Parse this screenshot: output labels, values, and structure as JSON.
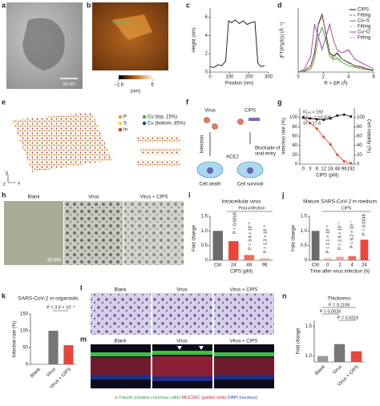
{
  "chart_data": [
    {
      "panel": "c",
      "type": "line",
      "x": [
        0,
        20,
        40,
        60,
        80,
        95,
        110,
        130,
        150,
        170,
        190,
        210,
        230,
        245,
        260,
        280
      ],
      "series": [
        {
          "color": "#111111",
          "values": [
            0.6,
            0.5,
            0.8,
            0.7,
            1.2,
            5.6,
            5.4,
            5.7,
            5.3,
            5.6,
            5.2,
            5.4,
            5.5,
            1.0,
            0.6,
            0.7
          ]
        }
      ],
      "xlim": [
        0,
        300
      ],
      "ylim": [
        0,
        7
      ],
      "xticks": [
        0,
        100,
        200,
        300
      ],
      "yticks": [
        0,
        2,
        4,
        6
      ],
      "xlabel": "Position (nm)",
      "ylabel": "Height (nm)"
    },
    {
      "panel": "d",
      "type": "line",
      "x": [
        0,
        0.5,
        1,
        1.3,
        1.6,
        1.9,
        2.2,
        2.5,
        2.8,
        3.1,
        3.5,
        4,
        4.5,
        5,
        5.5,
        6
      ],
      "series": [
        {
          "name": "CIPS",
          "color": "#111111",
          "style": "solid",
          "values": [
            0,
            0.02,
            0.1,
            0.3,
            0.75,
            0.9,
            0.6,
            0.3,
            0.25,
            0.3,
            0.2,
            0.15,
            0.1,
            0.08,
            0.05,
            0.03
          ]
        },
        {
          "name": "Fitting",
          "color": "#e8463a",
          "style": "dashed",
          "values": [
            0,
            0.02,
            0.1,
            0.32,
            0.73,
            0.88,
            0.62,
            0.3,
            0.22,
            0.28,
            0.2,
            0.14,
            0.1,
            0.07,
            0.05,
            0.03
          ]
        },
        {
          "name": "Cu–S",
          "color": "#2e9e44",
          "style": "solid",
          "values": [
            0,
            0.01,
            0.05,
            0.2,
            0.55,
            0.7,
            0.5,
            0.25,
            0.2,
            0.22,
            0.15,
            0.1,
            0.08,
            0.05,
            0.04,
            0.02
          ]
        },
        {
          "name": "Fitting",
          "color": "#7bc96f",
          "style": "dotted",
          "values": [
            0,
            0.01,
            0.06,
            0.22,
            0.53,
            0.68,
            0.52,
            0.26,
            0.18,
            0.2,
            0.15,
            0.1,
            0.07,
            0.05,
            0.03,
            0.02
          ]
        },
        {
          "name": "Cu–O",
          "color": "#b03aa8",
          "style": "solid",
          "values": [
            0,
            0.05,
            0.25,
            0.75,
            0.55,
            0.35,
            0.55,
            0.75,
            0.5,
            0.35,
            0.3,
            0.35,
            0.2,
            0.15,
            0.1,
            0.05
          ]
        },
        {
          "name": "Fitting",
          "color": "#8a7fd0",
          "style": "dotted",
          "values": [
            0,
            0.04,
            0.24,
            0.72,
            0.57,
            0.37,
            0.53,
            0.72,
            0.52,
            0.33,
            0.3,
            0.33,
            0.21,
            0.14,
            0.1,
            0.05
          ]
        }
      ],
      "xlim": [
        0,
        6
      ],
      "ylim": [
        0,
        1
      ],
      "xticks": [
        0,
        2,
        4,
        6
      ],
      "legend": "top-right",
      "xlabel": "R + ΔR (Å)",
      "ylabel": "|FT(k³χ(k))| (Å⁻⁴)"
    },
    {
      "panel": "g",
      "type": "line",
      "categories": [
        "0",
        "3",
        "6",
        "12",
        "24",
        "48",
        "96",
        "192"
      ],
      "series": [
        {
          "color": "#e8463a",
          "axis": "y",
          "values": [
            100,
            88,
            76,
            58,
            42,
            20,
            6,
            2
          ]
        },
        {
          "color": "#222222",
          "axis": "y2",
          "values": [
            100,
            98,
            96,
            95,
            98,
            104,
            106,
            102
          ]
        }
      ],
      "markers": true,
      "ylim": [
        0,
        120
      ],
      "yticks": [
        0,
        20,
        40,
        60,
        80,
        100
      ],
      "y2lim": [
        0,
        120
      ],
      "y2ticks": [
        0,
        20,
        40,
        60,
        80,
        100
      ],
      "xlabel": "CIPS (pM)",
      "ylabel": "Infection rate (%)",
      "y2label": "Cell viability (%)",
      "annotations": [
        "IC₅₀ > 192",
        "EC₅₀ = 10.938",
        "SI > 17.6"
      ]
    },
    {
      "panel": "i",
      "type": "bar",
      "title": "Intracellular virus",
      "categories": [
        "Ctrl",
        "24",
        "48",
        "96"
      ],
      "values": [
        1.0,
        0.65,
        0.18,
        0.06
      ],
      "colors": [
        "#6b6b6b",
        "#e8463a",
        "#ef6a5c",
        "#f4a29a"
      ],
      "ylim": [
        0,
        1.5
      ],
      "yticks": [
        0,
        0.5,
        {
          "value": 1,
          "label": "1.0"
        },
        1.5
      ],
      "xlabel": "CIPS (pM)",
      "ylabel": "Fold change",
      "annotations": [
        "Post-infection",
        "P = 0.0019",
        "P = 3.4 × 10⁻⁶",
        "P = 1.3 × 10⁻⁶"
      ]
    },
    {
      "panel": "j",
      "type": "bar",
      "title": "Mature SARS-CoV-2 in medium",
      "categories": [
        "Ctrl",
        "0",
        "2",
        "4",
        "24"
      ],
      "values": [
        1.0,
        0.06,
        0.12,
        0.14,
        0.7
      ],
      "colors": [
        "#6b6b6b",
        "#f4a29a",
        "#f4a29a",
        "#ef6a5c",
        "#e8463a"
      ],
      "ylim": [
        0,
        1.5
      ],
      "yticks": [
        0,
        0.5,
        {
          "value": 1,
          "label": "1.0"
        },
        1.5
      ],
      "xlabel": "Time after virus infection (h)",
      "ylabel": "Fold change",
      "annotations": [
        "CIPS",
        "P = 2.1 × 10⁻⁶",
        "P = 2.4 × 10⁻⁷",
        "P = 6.2 × 10⁻⁷",
        "P = 0.0248"
      ]
    },
    {
      "panel": "k",
      "type": "bar",
      "title": "SARS-CoV-2 in organoids",
      "categories": [
        "Blank",
        "Virus",
        "Virus + CIPS"
      ],
      "values": [
        0.5,
        100,
        57
      ],
      "colors": [
        "#9a9a9a",
        "#777777",
        "#e8463a"
      ],
      "ylim": [
        0,
        150
      ],
      "yticks": [
        0,
        50,
        100,
        150
      ],
      "ylabel": "Infection rate (%)",
      "annotations": [
        "P = 3.6 × 10⁻⁴"
      ]
    },
    {
      "panel": "n",
      "type": "bar",
      "title": "Thickness",
      "categories": [
        "Blank",
        "Virus",
        "Virus + CIPS"
      ],
      "values": [
        1.0,
        1.2,
        1.08
      ],
      "colors": [
        "#9a9a9a",
        "#777777",
        "#e8463a"
      ],
      "ylim": [
        0.9,
        1.6
      ],
      "yticks": [
        {
          "value": 1,
          "label": "1.0"
        },
        1.5
      ],
      "ylabel": "Fold change",
      "annotations": [
        "P = 0.1109",
        "P = 0.0026",
        "P = 0.0315"
      ]
    }
  ],
  "panels": {
    "a": {
      "label": "a",
      "scale_bar": "50 nm"
    },
    "b": {
      "label": "b",
      "colorbar": [
        {
          "value": -2.8,
          "label": "−2.8"
        },
        6
      ],
      "colorbar_unit": "(nm)"
    },
    "e": {
      "label": "e",
      "legend": [
        "P",
        "S",
        "In",
        "Cu (top, 15%)",
        "Cu (bottom, 85%)"
      ],
      "axes": [
        "y",
        "z",
        "x"
      ]
    },
    "f": {
      "label": "f",
      "virus": "Virus",
      "cips": "CIPS",
      "infection": "Infection",
      "ace2": "ACE2",
      "blockade": [
        "Blockade of",
        "viral entry"
      ],
      "cell_death": "Cell death",
      "cell_survival": "Cell survival"
    },
    "h": {
      "label": "h",
      "titles": [
        "Blank",
        "Virus",
        "Virus + CIPS"
      ],
      "blank_value": "99.9%"
    },
    "l": {
      "label": "l",
      "titles": [
        "Blank",
        "Virus",
        "Virus + CIPS"
      ]
    },
    "m": {
      "label": "m",
      "titles": [
        "Blank",
        "Virus",
        "Virus + CIPS"
      ],
      "caption": [
        "α-Tubulin (ciliated columnar cells)",
        "MUC5AC (goblet cells)",
        "DAPI (nucleus)"
      ]
    }
  }
}
